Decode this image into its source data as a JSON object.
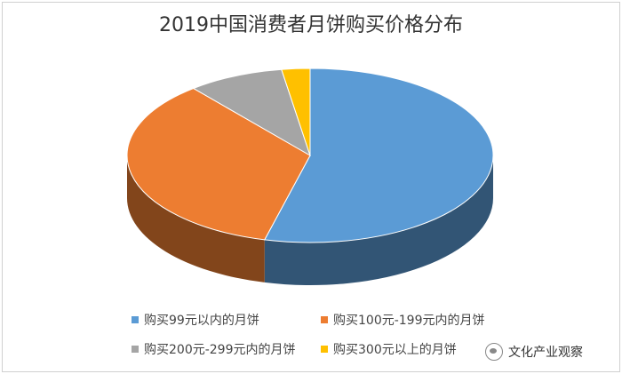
{
  "chart_data": {
    "type": "pie",
    "title": "2019中国消费者月饼购买价格分布",
    "legend_position": "bottom",
    "slices": [
      {
        "label": "购买99元以内的月饼",
        "value": 54,
        "color": "#5b9bd5"
      },
      {
        "label": "购买100元-199元内的月饼",
        "value": 35,
        "color": "#ed7d31"
      },
      {
        "label": "购买200元-299元内的月饼",
        "value": 8.5,
        "color": "#a5a5a5"
      },
      {
        "label": "购买300元以上的月饼",
        "value": 2.5,
        "color": "#ffc000"
      }
    ]
  },
  "watermark": {
    "text": "文化产业观察",
    "icon": "wechat-icon"
  }
}
